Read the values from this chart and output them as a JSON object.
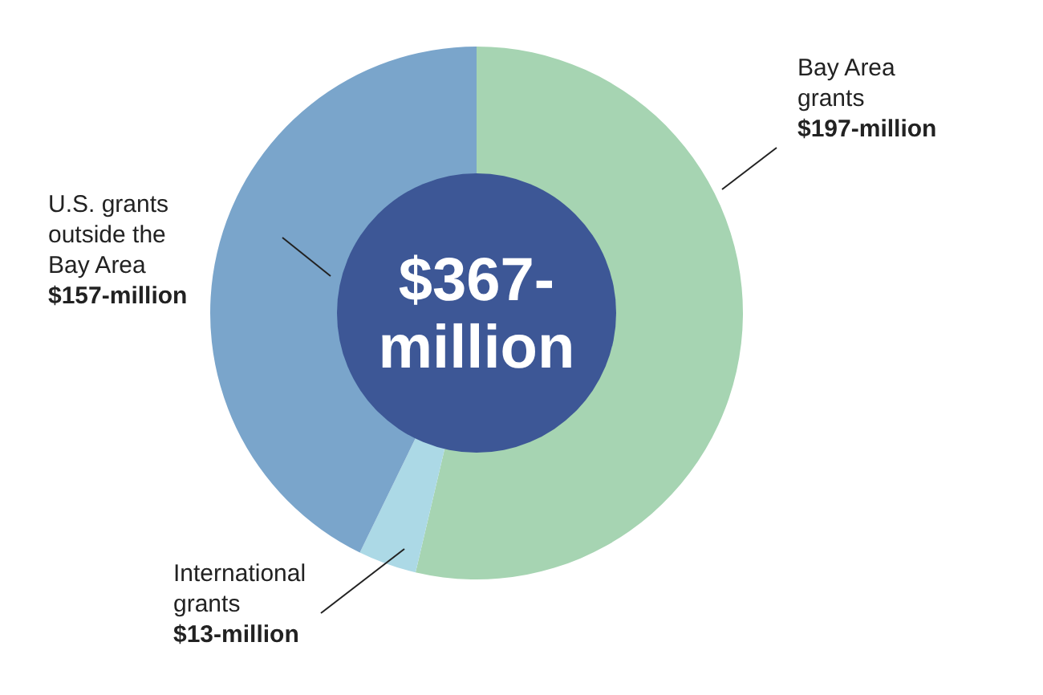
{
  "chart_data": {
    "type": "donut",
    "title": "$367-million",
    "categories": [
      "Bay Area grants",
      "International grants",
      "U.S. grants outside the Bay Area"
    ],
    "values": [
      197,
      13,
      157
    ],
    "colors": [
      "#a6d4b2",
      "#acd9e6",
      "#7aa5cb"
    ],
    "value_labels": [
      "$197-million",
      "$13-million",
      "$157-million"
    ],
    "legend": false
  }
}
